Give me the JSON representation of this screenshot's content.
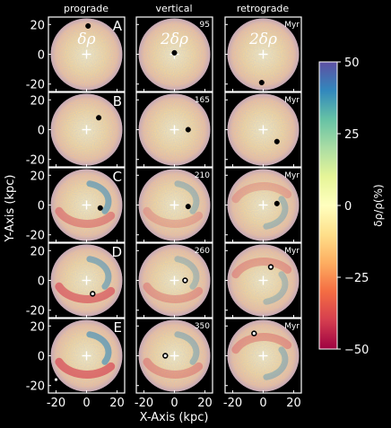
{
  "chart_data": {
    "type": "heatmap",
    "column_titles": [
      "prograde",
      "vertical",
      "retrograde"
    ],
    "column_labels": [
      "δρ",
      "2δρ",
      "2δρ"
    ],
    "row_letters": [
      "A",
      "B",
      "C",
      "D",
      "E"
    ],
    "time_labels": [
      "95",
      "165",
      "210",
      "260",
      "350"
    ],
    "myr_label": "Myr",
    "xlabel": "X-Axis (kpc)",
    "ylabel": "Y-Axis (kpc)",
    "x_ticks": [
      "-20",
      "0",
      "20"
    ],
    "y_ticks": [
      "20",
      "0",
      "-20"
    ],
    "xlim": [
      -25,
      25
    ],
    "ylim": [
      -25,
      25
    ],
    "colorbar": {
      "label": "δρ/ρ(%)",
      "ticks": [
        "50",
        "25",
        "0",
        "−25",
        "−50"
      ],
      "range": [
        -50,
        50
      ],
      "colormap": "Spectral"
    },
    "satellite_positions": [
      [
        {
          "x": 1,
          "y": 19,
          "hollow": false
        },
        {
          "x": 0,
          "y": 1,
          "hollow": false
        },
        {
          "x": -1,
          "y": -19,
          "hollow": false
        }
      ],
      [
        {
          "x": 8,
          "y": 8,
          "hollow": false
        },
        {
          "x": 9,
          "y": 0,
          "hollow": false
        },
        {
          "x": 9,
          "y": -8,
          "hollow": false
        }
      ],
      [
        {
          "x": 9,
          "y": -2,
          "hollow": false
        },
        {
          "x": 9,
          "y": -1,
          "hollow": false
        },
        {
          "x": 9,
          "y": 1,
          "hollow": false
        }
      ],
      [
        {
          "x": 4,
          "y": -9,
          "hollow": true
        },
        {
          "x": 7,
          "y": 0,
          "hollow": true
        },
        {
          "x": 5,
          "y": 9,
          "hollow": true
        }
      ],
      [
        {
          "x": -20,
          "y": -16,
          "hollow": true
        },
        {
          "x": -6,
          "y": 0,
          "hollow": true
        },
        {
          "x": -6,
          "y": 15,
          "hollow": true
        }
      ]
    ]
  }
}
